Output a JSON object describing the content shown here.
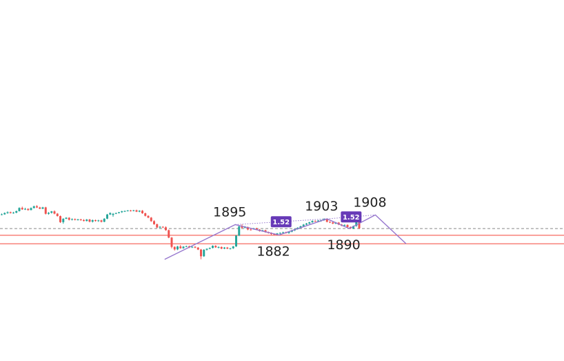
{
  "chart_data": {
    "type": "candlestick",
    "up_color": "#26a69a",
    "down_color": "#ef5350",
    "pattern_color": "#9575cd",
    "ratio_badge_color": "#673ab7",
    "price_reference": {
      "top_price": 1922.8,
      "bottom_price": 1870.5
    },
    "candles": [
      [
        1908.2,
        1910.0,
        1907.6,
        1908.8
      ],
      [
        1908.8,
        1911.3,
        1908.3,
        1910.5
      ],
      [
        1910.5,
        1912.7,
        1909.5,
        1911.6
      ],
      [
        1911.6,
        1912.4,
        1909.9,
        1910.5
      ],
      [
        1910.5,
        1912.1,
        1909.6,
        1911.0
      ],
      [
        1911.0,
        1913.7,
        1910.2,
        1913.0
      ],
      [
        1913.0,
        1918.0,
        1912.5,
        1917.2
      ],
      [
        1917.2,
        1918.9,
        1914.6,
        1915.3
      ],
      [
        1915.3,
        1917.4,
        1914.5,
        1915.9
      ],
      [
        1915.9,
        1916.7,
        1913.6,
        1914.4
      ],
      [
        1914.4,
        1917.8,
        1914.0,
        1917.0
      ],
      [
        1917.0,
        1920.2,
        1916.5,
        1919.3
      ],
      [
        1919.3,
        1920.9,
        1917.0,
        1917.8
      ],
      [
        1917.8,
        1918.7,
        1915.6,
        1916.1
      ],
      [
        1916.1,
        1918.6,
        1915.6,
        1917.9
      ],
      [
        1917.9,
        1918.7,
        1908.6,
        1909.5
      ],
      [
        1909.5,
        1911.7,
        1908.4,
        1910.8
      ],
      [
        1910.8,
        1913.2,
        1909.9,
        1912.7
      ],
      [
        1912.7,
        1914.0,
        1908.8,
        1909.7
      ],
      [
        1909.7,
        1910.5,
        1905.9,
        1906.5
      ],
      [
        1906.5,
        1907.3,
        1897.6,
        1898.6
      ],
      [
        1898.6,
        1903.8,
        1896.5,
        1903.0
      ],
      [
        1903.0,
        1905.1,
        1902.5,
        1904.3
      ],
      [
        1904.3,
        1905.1,
        1900.8,
        1901.7
      ],
      [
        1901.7,
        1903.5,
        1900.8,
        1902.6
      ],
      [
        1902.6,
        1903.4,
        1900.9,
        1901.5
      ],
      [
        1901.5,
        1903.0,
        1900.7,
        1902.2
      ],
      [
        1902.2,
        1903.0,
        1900.4,
        1901.3
      ],
      [
        1901.3,
        1902.5,
        1899.6,
        1900.1
      ],
      [
        1900.1,
        1902.7,
        1899.5,
        1902.0
      ],
      [
        1902.0,
        1902.8,
        1898.3,
        1899.2
      ],
      [
        1899.2,
        1902.1,
        1898.1,
        1901.2
      ],
      [
        1901.2,
        1902.0,
        1899.4,
        1900.1
      ],
      [
        1900.1,
        1901.7,
        1899.0,
        1900.9
      ],
      [
        1900.9,
        1901.7,
        1898.2,
        1899.1
      ],
      [
        1899.1,
        1903.8,
        1898.5,
        1903.1
      ],
      [
        1903.1,
        1909.4,
        1902.5,
        1908.6
      ],
      [
        1908.6,
        1911.3,
        1907.8,
        1910.6
      ],
      [
        1908.0,
        1910.5,
        1905.5,
        1909.5
      ],
      [
        1909.5,
        1911.1,
        1909.1,
        1910.5
      ],
      [
        1910.5,
        1912.0,
        1909.9,
        1911.6
      ],
      [
        1911.6,
        1913.5,
        1910.7,
        1912.8
      ],
      [
        1912.8,
        1913.8,
        1911.9,
        1913.2
      ],
      [
        1913.2,
        1914.4,
        1912.6,
        1913.8
      ],
      [
        1913.8,
        1914.6,
        1912.5,
        1913.3
      ],
      [
        1913.3,
        1914.6,
        1912.7,
        1914.1
      ],
      [
        1914.1,
        1914.9,
        1911.7,
        1912.3
      ],
      [
        1912.3,
        1914.1,
        1911.6,
        1913.6
      ],
      [
        1913.6,
        1914.4,
        1909.5,
        1910.2
      ],
      [
        1910.2,
        1911.0,
        1906.0,
        1906.8
      ],
      [
        1906.8,
        1907.6,
        1903.8,
        1904.5
      ],
      [
        1904.5,
        1905.3,
        1899.0,
        1899.9
      ],
      [
        1899.9,
        1901.2,
        1895.2,
        1895.9
      ],
      [
        1895.9,
        1896.7,
        1890.8,
        1891.6
      ],
      [
        1891.6,
        1893.5,
        1890.2,
        1892.5
      ],
      [
        1892.5,
        1893.3,
        1890.9,
        1891.8
      ],
      [
        1891.8,
        1893.1,
        1887.4,
        1888.1
      ],
      [
        1888.1,
        1888.9,
        1877.6,
        1878.4
      ],
      [
        1878.4,
        1879.2,
        1864.3,
        1866.3
      ],
      [
        1866.3,
        1867.1,
        1861.5,
        1863.0
      ],
      [
        1863.0,
        1867.6,
        1862.1,
        1866.8
      ],
      [
        1866.8,
        1868.7,
        1863.9,
        1864.5
      ],
      [
        1864.5,
        1867.3,
        1863.8,
        1866.6
      ],
      [
        1866.6,
        1868.0,
        1866.0,
        1867.1
      ],
      [
        1867.1,
        1867.9,
        1864.8,
        1865.5
      ],
      [
        1865.5,
        1867.0,
        1864.8,
        1866.4
      ],
      [
        1866.4,
        1867.2,
        1864.6,
        1865.3
      ],
      [
        1865.3,
        1866.1,
        1862.1,
        1862.8
      ],
      [
        1862.8,
        1863.6,
        1850.1,
        1854.0
      ],
      [
        1854.0,
        1863.3,
        1853.2,
        1862.5
      ],
      [
        1862.5,
        1864.3,
        1861.4,
        1863.8
      ],
      [
        1863.8,
        1865.5,
        1863.2,
        1864.9
      ],
      [
        1864.9,
        1868.4,
        1864.3,
        1867.7
      ],
      [
        1867.7,
        1868.5,
        1865.0,
        1865.7
      ],
      [
        1865.7,
        1867.0,
        1864.3,
        1866.1
      ],
      [
        1866.1,
        1866.9,
        1863.3,
        1864.0
      ],
      [
        1864.0,
        1866.1,
        1863.4,
        1865.4
      ],
      [
        1865.4,
        1866.2,
        1863.3,
        1864.0
      ],
      [
        1864.0,
        1865.0,
        1862.8,
        1864.5
      ],
      [
        1864.5,
        1867.5,
        1863.6,
        1866.9
      ],
      [
        1866.9,
        1881.8,
        1866.2,
        1881.0
      ],
      [
        1881.0,
        1893.8,
        1880.2,
        1893.0
      ],
      [
        1893.0,
        1895.7,
        1890.2,
        1891.2
      ],
      [
        1891.2,
        1893.5,
        1890.5,
        1892.0
      ],
      [
        1892.0,
        1892.8,
        1888.0,
        1889.0
      ],
      [
        1889.0,
        1890.5,
        1887.6,
        1888.4
      ],
      [
        1889.4,
        1891.1,
        1888.8,
        1890.5
      ],
      [
        1890.5,
        1891.3,
        1888.2,
        1888.9
      ],
      [
        1888.9,
        1889.7,
        1886.3,
        1887.0
      ],
      [
        1887.0,
        1888.6,
        1886.2,
        1888.0
      ],
      [
        1888.0,
        1888.8,
        1884.8,
        1885.5
      ],
      [
        1885.5,
        1886.3,
        1883.6,
        1884.5
      ],
      [
        1884.5,
        1885.3,
        1882.0,
        1883.0
      ],
      [
        1883.0,
        1883.8,
        1882.0,
        1882.8
      ],
      [
        1882.8,
        1884.5,
        1882.1,
        1883.9
      ],
      [
        1883.9,
        1885.2,
        1883.1,
        1884.6
      ],
      [
        1884.6,
        1886.1,
        1883.8,
        1885.4
      ],
      [
        1885.4,
        1886.2,
        1883.7,
        1884.3
      ],
      [
        1884.3,
        1886.7,
        1883.5,
        1886.0
      ],
      [
        1886.0,
        1888.6,
        1885.3,
        1887.9
      ],
      [
        1887.9,
        1890.2,
        1887.0,
        1889.5
      ],
      [
        1889.5,
        1892.0,
        1888.8,
        1891.3
      ],
      [
        1891.3,
        1893.9,
        1890.5,
        1893.2
      ],
      [
        1893.2,
        1896.2,
        1892.5,
        1895.4
      ],
      [
        1895.4,
        1897.6,
        1894.7,
        1896.8
      ],
      [
        1896.8,
        1899.1,
        1896.1,
        1898.4
      ],
      [
        1898.4,
        1900.9,
        1897.7,
        1900.2
      ],
      [
        1900.2,
        1900.8,
        1899.1,
        1899.6
      ],
      [
        1899.6,
        1901.3,
        1898.6,
        1900.7
      ],
      [
        1900.7,
        1901.8,
        1899.2,
        1901.2
      ],
      [
        1901.2,
        1903.5,
        1900.4,
        1902.7
      ],
      [
        1902.7,
        1903.5,
        1898.3,
        1899.0
      ],
      [
        1899.0,
        1899.8,
        1897.4,
        1898.2
      ],
      [
        1898.2,
        1899.0,
        1896.0,
        1896.7
      ],
      [
        1896.7,
        1898.7,
        1896.0,
        1898.0
      ],
      [
        1898.0,
        1898.8,
        1894.7,
        1895.4
      ],
      [
        1895.4,
        1896.2,
        1893.4,
        1894.0
      ],
      [
        1894.0,
        1895.7,
        1893.4,
        1895.0
      ],
      [
        1895.0,
        1895.8,
        1891.5,
        1892.2
      ],
      [
        1892.2,
        1893.0,
        1889.6,
        1890.3
      ],
      [
        1890.3,
        1894.1,
        1889.6,
        1893.5
      ],
      [
        1893.5,
        1899.8,
        1892.7,
        1899.0
      ],
      [
        1899.0,
        1905.4,
        1889.6,
        1890.6
      ]
    ],
    "pattern_points": [
      {
        "index": 55.6,
        "price": 1850.0
      },
      {
        "index": 79.7,
        "price": 1895.4
      },
      {
        "index": 94.6,
        "price": 1881.8
      },
      {
        "index": 111.0,
        "price": 1902.9
      },
      {
        "index": 118.6,
        "price": 1890.2
      },
      {
        "index": 127.5,
        "price": 1908.0
      },
      {
        "index": 138.0,
        "price": 1870.4
      }
    ],
    "pivot_labels": [
      {
        "text": "1895",
        "index": 79.7,
        "price": 1895.4,
        "position": "above"
      },
      {
        "text": "1882",
        "index": 94.6,
        "price": 1881.8,
        "position": "below"
      },
      {
        "text": "1903",
        "index": 111.0,
        "price": 1902.9,
        "position": "above"
      },
      {
        "text": "1890",
        "index": 118.6,
        "price": 1890.2,
        "position": "below"
      },
      {
        "text": "1908",
        "index": 127.5,
        "price": 1908.0,
        "position": "above"
      }
    ],
    "ratio_badges": [
      {
        "text": "1.52",
        "from": 1,
        "to": 3
      },
      {
        "text": "1.52",
        "from": 3,
        "to": 5
      }
    ],
    "horizontal_lines": [
      {
        "price": 1890.2,
        "style": "dashed",
        "color": "#888888"
      },
      {
        "price": 1881.4,
        "style": "solid",
        "color": "#f44336"
      },
      {
        "price": 1870.4,
        "style": "solid",
        "color": "#f44336"
      }
    ]
  }
}
